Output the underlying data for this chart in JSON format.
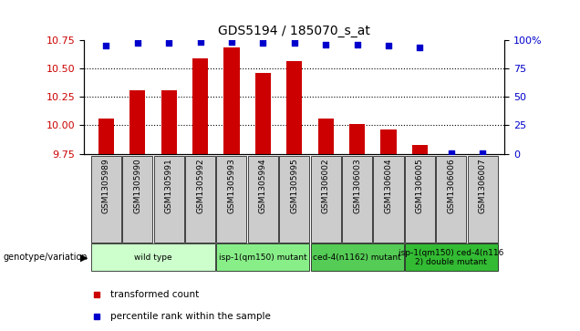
{
  "title": "GDS5194 / 185070_s_at",
  "samples": [
    "GSM1305989",
    "GSM1305990",
    "GSM1305991",
    "GSM1305992",
    "GSM1305993",
    "GSM1305994",
    "GSM1305995",
    "GSM1306002",
    "GSM1306003",
    "GSM1306004",
    "GSM1306005",
    "GSM1306006",
    "GSM1306007"
  ],
  "bar_values": [
    10.06,
    10.31,
    10.31,
    10.59,
    10.68,
    10.46,
    10.56,
    10.06,
    10.01,
    9.96,
    9.83,
    9.75,
    9.75
  ],
  "percentile_values": [
    95,
    97,
    97,
    98,
    98,
    97,
    97,
    96,
    96,
    95,
    93,
    1,
    1
  ],
  "bar_color": "#cc0000",
  "dot_color": "#0000cc",
  "ylim_left": [
    9.75,
    10.75
  ],
  "ylim_right": [
    0,
    100
  ],
  "yticks_left": [
    9.75,
    10.0,
    10.25,
    10.5,
    10.75
  ],
  "yticks_right": [
    0,
    25,
    50,
    75,
    100
  ],
  "ytick_labels_right": [
    "0",
    "25",
    "50",
    "75",
    "100%"
  ],
  "groups": [
    {
      "label": "wild type",
      "start": 0,
      "end": 3,
      "color": "#ccffcc"
    },
    {
      "label": "isp-1(qm150) mutant",
      "start": 4,
      "end": 6,
      "color": "#88ee88"
    },
    {
      "label": "ced-4(n1162) mutant",
      "start": 7,
      "end": 9,
      "color": "#55cc55"
    },
    {
      "label": "isp-1(qm150) ced-4(n116\n2) double mutant",
      "start": 10,
      "end": 12,
      "color": "#33bb33"
    }
  ],
  "legend_items": [
    {
      "label": "transformed count",
      "color": "#cc0000"
    },
    {
      "label": "percentile rank within the sample",
      "color": "#0000cc"
    }
  ],
  "genotype_label": "genotype/variation",
  "background_color": "#ffffff",
  "grid_color": "#000000",
  "tick_label_bg": "#cccccc"
}
